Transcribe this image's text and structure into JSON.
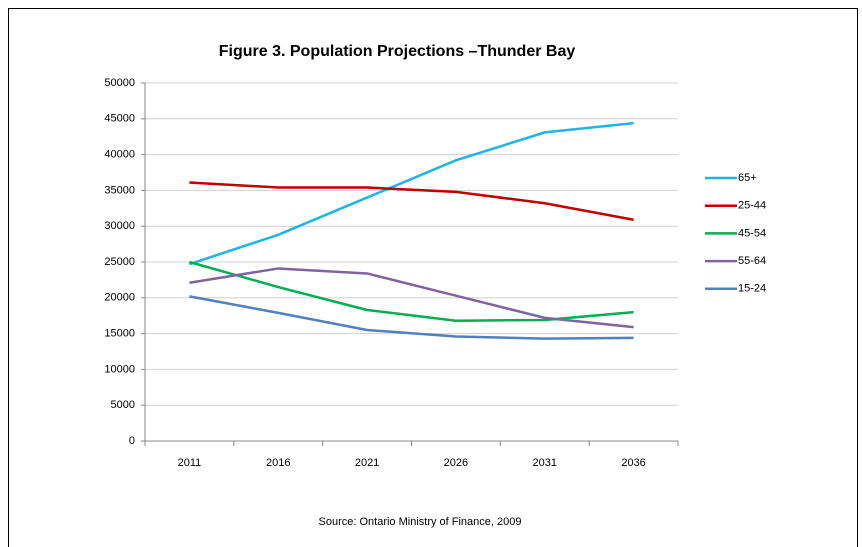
{
  "chart_data": {
    "type": "line",
    "title": "Figure 3. Population Projections –Thunder Bay",
    "source": "Source: Ontario Ministry of Finance, 2009",
    "categories": [
      "2011",
      "2016",
      "2021",
      "2026",
      "2031",
      "2036"
    ],
    "series": [
      {
        "name": "65+",
        "color": "#1fb4e8",
        "values": [
          24700,
          28800,
          34000,
          39200,
          43100,
          44400
        ]
      },
      {
        "name": "25-44",
        "color": "#c00000",
        "values": [
          36100,
          35400,
          35400,
          34800,
          33200,
          30900
        ]
      },
      {
        "name": "45-54",
        "color": "#00b050",
        "values": [
          25000,
          21500,
          18300,
          16800,
          16900,
          18000
        ]
      },
      {
        "name": "55-64",
        "color": "#8064a2",
        "values": [
          22100,
          24100,
          23400,
          20300,
          17200,
          15900
        ]
      },
      {
        "name": "15-24",
        "color": "#4f81bd",
        "values": [
          20200,
          17900,
          15500,
          14600,
          14300,
          14400
        ]
      }
    ],
    "ylim": [
      0,
      50000
    ],
    "yticks": [
      0,
      5000,
      10000,
      15000,
      20000,
      25000,
      30000,
      35000,
      40000,
      45000,
      50000
    ],
    "grid": true,
    "legend": "right"
  }
}
